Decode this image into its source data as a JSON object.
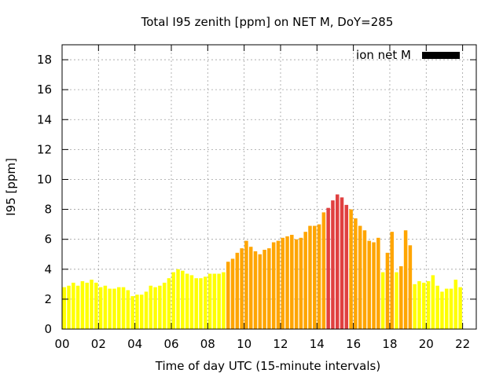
{
  "chart_data": {
    "type": "bar",
    "title": "Total I95 zenith [ppm] on NET M, DoY=285",
    "xlabel": "Time of day UTC (15-minute intervals)",
    "ylabel": "I95 [ppm]",
    "ylim": [
      0,
      19
    ],
    "xlim_hours": [
      0,
      22.75
    ],
    "yticks": [
      0,
      2,
      4,
      6,
      8,
      10,
      12,
      14,
      16,
      18
    ],
    "xtick_labels": [
      "00",
      "02",
      "04",
      "06",
      "08",
      "10",
      "12",
      "14",
      "16",
      "18",
      "20",
      "22"
    ],
    "grid": true,
    "legend": {
      "label": "ion net M",
      "color": "#000000",
      "position": "top-right"
    },
    "colors": {
      "low": "#ffff00",
      "medium": "#ffa500",
      "high": "#e04040"
    },
    "bars_start_hour": 0,
    "bar_interval_hours": 0.25,
    "values": [
      2.8,
      2.9,
      3.1,
      2.9,
      3.2,
      3.1,
      3.3,
      3.1,
      2.8,
      2.9,
      2.7,
      2.7,
      2.8,
      2.8,
      2.6,
      2.2,
      2.3,
      2.3,
      2.5,
      2.9,
      2.8,
      2.9,
      3.1,
      3.4,
      3.8,
      4.0,
      3.9,
      3.7,
      3.6,
      3.4,
      3.4,
      3.5,
      3.7,
      3.7,
      3.7,
      3.8,
      4.5,
      4.7,
      5.1,
      5.4,
      5.9,
      5.5,
      5.2,
      5.0,
      5.3,
      5.4,
      5.8,
      5.9,
      6.1,
      6.2,
      6.3,
      6.0,
      6.1,
      6.5,
      6.9,
      6.9,
      7.0,
      7.8,
      8.1,
      8.6,
      9.0,
      8.8,
      8.3,
      8.0,
      7.4,
      6.9,
      6.6,
      5.9,
      5.8,
      6.1,
      3.8,
      5.1,
      6.5,
      3.8,
      4.2,
      6.6,
      5.6,
      3.0,
      3.2,
      3.1,
      3.2,
      3.6,
      2.9,
      2.5,
      2.7,
      2.7,
      3.3,
      2.8
    ],
    "levels": [
      "low",
      "low",
      "low",
      "low",
      "low",
      "low",
      "low",
      "low",
      "low",
      "low",
      "low",
      "low",
      "low",
      "low",
      "low",
      "low",
      "low",
      "low",
      "low",
      "low",
      "low",
      "low",
      "low",
      "low",
      "low",
      "low",
      "low",
      "low",
      "low",
      "low",
      "low",
      "low",
      "low",
      "low",
      "low",
      "low",
      "medium",
      "medium",
      "medium",
      "medium",
      "medium",
      "medium",
      "medium",
      "medium",
      "medium",
      "medium",
      "medium",
      "medium",
      "medium",
      "medium",
      "medium",
      "medium",
      "medium",
      "medium",
      "medium",
      "medium",
      "medium",
      "medium",
      "high",
      "high",
      "high",
      "high",
      "high",
      "medium",
      "medium",
      "medium",
      "medium",
      "medium",
      "medium",
      "medium",
      "low",
      "medium",
      "medium",
      "low",
      "medium",
      "medium",
      "medium",
      "low",
      "low",
      "low",
      "low",
      "low",
      "low",
      "low",
      "low",
      "low",
      "low",
      "low"
    ]
  }
}
